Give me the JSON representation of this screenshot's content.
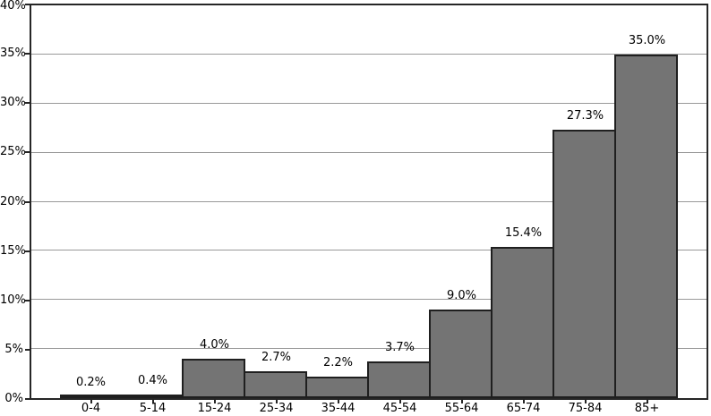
{
  "chart_data": {
    "type": "bar",
    "title": "",
    "xlabel": "",
    "ylabel": "",
    "categories": [
      "0-4",
      "5-14",
      "15-24",
      "25-34",
      "35-44",
      "45-54",
      "55-64",
      "65-74",
      "75-84",
      "85+"
    ],
    "values": [
      0.2,
      0.4,
      4.0,
      2.7,
      2.2,
      3.7,
      9.0,
      15.4,
      27.3,
      35.0
    ],
    "value_labels": [
      "0.2%",
      "0.4%",
      "4.0%",
      "2.7%",
      "2.2%",
      "3.7%",
      "9.0%",
      "15.4%",
      "27.3%",
      "35.0%"
    ],
    "ylim": [
      0,
      40
    ],
    "yticks": [
      0,
      5,
      10,
      15,
      20,
      25,
      30,
      35,
      40
    ],
    "ytick_labels": [
      "0%",
      "5%",
      "10%",
      "15%",
      "20%",
      "25%",
      "30%",
      "35%",
      "40%"
    ],
    "grid": "horizontal",
    "legend": "none",
    "colors": {
      "bar_fill": "#747474",
      "bar_edge": "#1f1f1f",
      "grid_line": "#999999",
      "axis_line": "#262626",
      "text": "#000000",
      "background": "#ffffff"
    }
  }
}
